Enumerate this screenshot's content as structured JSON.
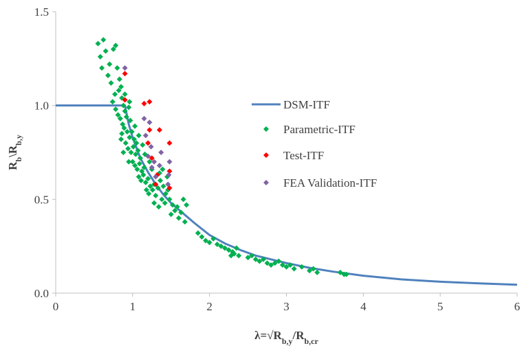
{
  "chart_data": {
    "type": "scatter",
    "title": "",
    "xlabel": "λ=√Rb,y/Rb,cr",
    "xlabel_parts": [
      {
        "text": "λ=√R",
        "sub": false
      },
      {
        "text": "b,y",
        "sub": true
      },
      {
        "text": "/R",
        "sub": false
      },
      {
        "text": "b,cr",
        "sub": true
      }
    ],
    "ylabel": "Rb\\Rb,y",
    "ylabel_parts": [
      {
        "text": "R",
        "sub": false
      },
      {
        "text": "b",
        "sub": true
      },
      {
        "text": "\\R",
        "sub": false
      },
      {
        "text": "b,y",
        "sub": true
      }
    ],
    "xlim": [
      0,
      6
    ],
    "ylim": [
      0,
      1.5
    ],
    "xticks": [
      0,
      1,
      2,
      3,
      4,
      5,
      6
    ],
    "yticks": [
      0.0,
      0.5,
      1.0,
      1.5
    ],
    "xtick_labels": [
      "0",
      "1",
      "2",
      "3",
      "4",
      "5",
      "6"
    ],
    "ytick_labels": [
      "0.0",
      "0.5",
      "1.0",
      "1.5"
    ],
    "grid": false,
    "legend_position": "center-right",
    "series": [
      {
        "name": "DSM-ITF",
        "kind": "line",
        "color": "#4F81BD",
        "x": [
          0,
          0.3,
          0.6,
          0.9,
          0.95,
          1.0,
          1.1,
          1.2,
          1.3,
          1.4,
          1.5,
          1.6,
          1.7,
          1.8,
          2.0,
          2.2,
          2.4,
          2.6,
          2.8,
          3.0,
          3.3,
          3.6,
          4.0,
          4.5,
          5.0,
          5.5,
          6.0
        ],
        "y": [
          1.0,
          1.0,
          1.0,
          1.0,
          0.9,
          0.83,
          0.72,
          0.645,
          0.58,
          0.525,
          0.48,
          0.445,
          0.41,
          0.375,
          0.31,
          0.265,
          0.23,
          0.2,
          0.18,
          0.16,
          0.135,
          0.115,
          0.093,
          0.073,
          0.061,
          0.052,
          0.045
        ]
      },
      {
        "name": "Parametric-ITF",
        "kind": "scatter",
        "marker": "diamond",
        "color": "#00B050",
        "points": [
          [
            0.55,
            1.33
          ],
          [
            0.62,
            1.35
          ],
          [
            0.58,
            1.26
          ],
          [
            0.65,
            1.29
          ],
          [
            0.7,
            1.22
          ],
          [
            0.75,
            1.3
          ],
          [
            0.78,
            1.32
          ],
          [
            0.6,
            1.2
          ],
          [
            0.68,
            1.16
          ],
          [
            0.72,
            1.12
          ],
          [
            0.8,
            1.2
          ],
          [
            0.83,
            1.14
          ],
          [
            0.85,
            1.1
          ],
          [
            0.77,
            1.06
          ],
          [
            0.82,
            1.08
          ],
          [
            0.86,
            1.04
          ],
          [
            0.88,
            1.0
          ],
          [
            0.74,
            1.02
          ],
          [
            0.78,
            0.98
          ],
          [
            0.81,
            0.95
          ],
          [
            0.84,
            0.93
          ],
          [
            0.87,
            0.9
          ],
          [
            0.9,
            0.97
          ],
          [
            0.92,
            0.94
          ],
          [
            0.95,
            0.99
          ],
          [
            0.97,
            0.92
          ],
          [
            0.86,
            0.85
          ],
          [
            0.89,
            0.88
          ],
          [
            0.93,
            0.86
          ],
          [
            0.96,
            0.83
          ],
          [
            0.99,
            0.86
          ],
          [
            1.02,
            0.82
          ],
          [
            1.05,
            0.8
          ],
          [
            0.91,
            0.8
          ],
          [
            0.94,
            0.77
          ],
          [
            0.98,
            0.75
          ],
          [
            1.01,
            0.78
          ],
          [
            1.04,
            0.74
          ],
          [
            1.07,
            0.76
          ],
          [
            1.1,
            0.72
          ],
          [
            1.0,
            0.7
          ],
          [
            1.03,
            0.68
          ],
          [
            1.06,
            0.66
          ],
          [
            1.09,
            0.69
          ],
          [
            1.12,
            0.65
          ],
          [
            1.15,
            0.67
          ],
          [
            1.08,
            0.62
          ],
          [
            1.11,
            0.6
          ],
          [
            1.14,
            0.63
          ],
          [
            1.17,
            0.59
          ],
          [
            1.2,
            0.61
          ],
          [
            1.23,
            0.57
          ],
          [
            1.18,
            0.55
          ],
          [
            1.21,
            0.53
          ],
          [
            1.26,
            0.55
          ],
          [
            1.3,
            0.52
          ],
          [
            1.28,
            0.58
          ],
          [
            1.33,
            0.56
          ],
          [
            1.36,
            0.6
          ],
          [
            1.4,
            0.57
          ],
          [
            1.43,
            0.53
          ],
          [
            1.46,
            0.55
          ],
          [
            1.38,
            0.5
          ],
          [
            1.42,
            0.48
          ],
          [
            1.48,
            0.5
          ],
          [
            1.52,
            0.47
          ],
          [
            1.55,
            0.44
          ],
          [
            1.58,
            0.46
          ],
          [
            1.5,
            0.42
          ],
          [
            1.6,
            0.4
          ],
          [
            1.63,
            0.43
          ],
          [
            1.66,
            0.5
          ],
          [
            1.7,
            0.47
          ],
          [
            1.68,
            0.38
          ],
          [
            1.35,
            0.64
          ],
          [
            1.39,
            0.66
          ],
          [
            1.45,
            0.62
          ],
          [
            1.25,
            0.66
          ],
          [
            1.22,
            0.7
          ],
          [
            1.16,
            0.74
          ],
          [
            1.13,
            0.79
          ],
          [
            1.08,
            0.84
          ],
          [
            1.03,
            0.89
          ],
          [
            0.96,
            1.02
          ],
          [
            0.9,
            1.06
          ],
          [
            0.85,
            0.82
          ],
          [
            0.88,
            0.75
          ],
          [
            0.95,
            0.7
          ],
          [
            1.28,
            0.48
          ],
          [
            1.34,
            0.46
          ],
          [
            1.85,
            0.32
          ],
          [
            1.9,
            0.3
          ],
          [
            1.95,
            0.28
          ],
          [
            2.0,
            0.27
          ],
          [
            2.05,
            0.29
          ],
          [
            2.1,
            0.26
          ],
          [
            2.15,
            0.25
          ],
          [
            2.2,
            0.24
          ],
          [
            2.25,
            0.23
          ],
          [
            2.3,
            0.22
          ],
          [
            2.35,
            0.24
          ],
          [
            2.28,
            0.2
          ],
          [
            2.32,
            0.21
          ],
          [
            2.38,
            0.2
          ],
          [
            2.5,
            0.19
          ],
          [
            2.55,
            0.2
          ],
          [
            2.6,
            0.18
          ],
          [
            2.65,
            0.17
          ],
          [
            2.7,
            0.18
          ],
          [
            2.75,
            0.16
          ],
          [
            2.8,
            0.15
          ],
          [
            2.85,
            0.16
          ],
          [
            2.9,
            0.17
          ],
          [
            2.95,
            0.15
          ],
          [
            3.0,
            0.14
          ],
          [
            3.05,
            0.15
          ],
          [
            3.1,
            0.13
          ],
          [
            3.2,
            0.14
          ],
          [
            3.3,
            0.12
          ],
          [
            3.35,
            0.13
          ],
          [
            3.4,
            0.11
          ],
          [
            3.7,
            0.11
          ],
          [
            3.75,
            0.1
          ],
          [
            3.78,
            0.1
          ]
        ]
      },
      {
        "name": "Test-ITF",
        "kind": "scatter",
        "marker": "diamond",
        "color": "#FF0000",
        "points": [
          [
            0.9,
            1.17
          ],
          [
            0.9,
            1.03
          ],
          [
            1.15,
            1.01
          ],
          [
            1.22,
            1.02
          ],
          [
            1.22,
            0.87
          ],
          [
            1.35,
            0.87
          ],
          [
            1.48,
            0.8
          ],
          [
            1.2,
            0.8
          ],
          [
            1.25,
            0.72
          ],
          [
            1.48,
            0.65
          ],
          [
            1.32,
            0.63
          ],
          [
            1.48,
            0.56
          ],
          [
            1.3,
            0.58
          ]
        ]
      },
      {
        "name": "FEA Validation-ITF",
        "kind": "scatter",
        "marker": "diamond",
        "color": "#8064A2",
        "points": [
          [
            0.9,
            1.2
          ],
          [
            1.15,
            0.93
          ],
          [
            1.22,
            0.91
          ],
          [
            1.17,
            0.84
          ],
          [
            1.24,
            0.78
          ],
          [
            1.2,
            0.73
          ],
          [
            1.28,
            0.7
          ],
          [
            1.37,
            0.75
          ],
          [
            1.35,
            0.68
          ],
          [
            1.3,
            0.62
          ],
          [
            1.48,
            0.7
          ],
          [
            1.47,
            0.63
          ],
          [
            1.46,
            0.58
          ],
          [
            1.25,
            0.67
          ]
        ]
      }
    ]
  }
}
